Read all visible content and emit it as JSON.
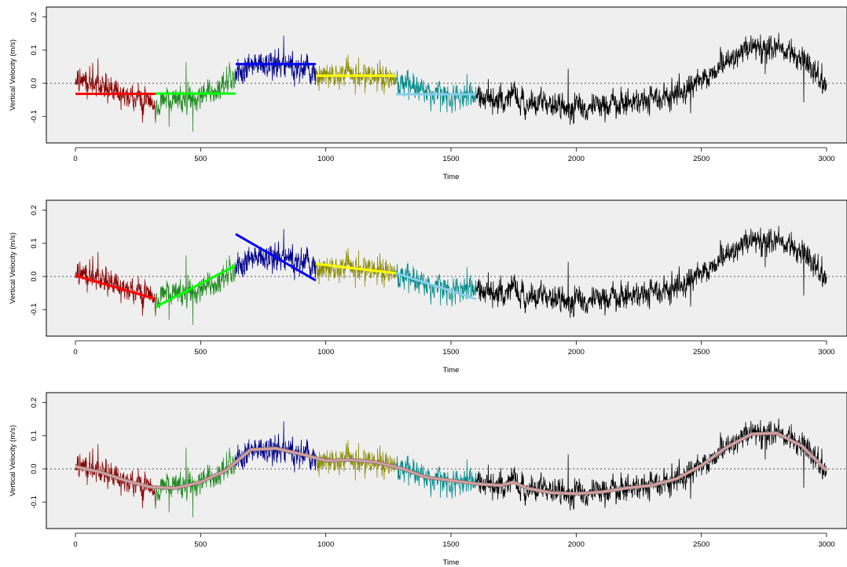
{
  "chart_data": [
    {
      "type": "line",
      "ylabel": "Vertical Velocity (m/s)",
      "xlabel": "Time",
      "xlim": [
        0,
        3000
      ],
      "ylim": [
        -0.18,
        0.23
      ],
      "x_ticks": [
        0,
        500,
        1000,
        1500,
        2000,
        2500,
        3000
      ],
      "y_ticks": [
        0.2,
        0.1,
        0.0,
        -0.1
      ],
      "y_tick_labels": [
        "0.2",
        "0.1",
        "0.0",
        "-0.1"
      ],
      "background": "#efefef",
      "zero_reference_line": "dotted",
      "segment_colors": [
        "#8b0000",
        "#228b22",
        "#00008b",
        "#8b8b00",
        "#008b8b",
        "#000000"
      ],
      "fit_colors": [
        "#ff0000",
        "#00ff00",
        "#0000ff",
        "#ffff00",
        "#87ceeb"
      ],
      "fitted_segments": [
        {
          "x0": 0,
          "x1": 320,
          "y0": -0.032,
          "y1": -0.032
        },
        {
          "x0": 320,
          "x1": 640,
          "y0": -0.031,
          "y1": -0.031
        },
        {
          "x0": 640,
          "x1": 960,
          "y0": 0.058,
          "y1": 0.058
        },
        {
          "x0": 960,
          "x1": 1280,
          "y0": 0.023,
          "y1": 0.023
        },
        {
          "x0": 1280,
          "x1": 1600,
          "y0": -0.033,
          "y1": -0.033
        }
      ]
    },
    {
      "type": "line",
      "ylabel": "Vertical Velocity (m/s)",
      "xlabel": "Time",
      "xlim": [
        0,
        3000
      ],
      "ylim": [
        -0.18,
        0.23
      ],
      "x_ticks": [
        0,
        500,
        1000,
        1500,
        2000,
        2500,
        3000
      ],
      "y_ticks": [
        0.2,
        0.1,
        0.0,
        -0.1
      ],
      "y_tick_labels": [
        "0.2",
        "0.1",
        "0.0",
        "-0.1"
      ],
      "background": "#efefef",
      "zero_reference_line": "dotted",
      "segment_colors": [
        "#8b0000",
        "#228b22",
        "#00008b",
        "#8b8b00",
        "#008b8b",
        "#000000"
      ],
      "fit_colors": [
        "#ff0000",
        "#00ff00",
        "#0000ff",
        "#ffff00",
        "#87ceeb"
      ],
      "fitted_segments": [
        {
          "x0": 0,
          "x1": 320,
          "y0": 0.003,
          "y1": -0.068
        },
        {
          "x0": 320,
          "x1": 640,
          "y0": -0.092,
          "y1": 0.033
        },
        {
          "x0": 640,
          "x1": 960,
          "y0": 0.128,
          "y1": -0.012
        },
        {
          "x0": 960,
          "x1": 1280,
          "y0": 0.038,
          "y1": 0.01
        },
        {
          "x0": 1280,
          "x1": 1600,
          "y0": 0.01,
          "y1": -0.068
        }
      ]
    },
    {
      "type": "line",
      "ylabel": "Vertical Velocity (m/s)",
      "xlabel": "Time",
      "xlim": [
        0,
        3000
      ],
      "ylim": [
        -0.18,
        0.23
      ],
      "x_ticks": [
        0,
        500,
        1000,
        1500,
        2000,
        2500,
        3000
      ],
      "y_ticks": [
        0.2,
        0.1,
        0.0,
        -0.1
      ],
      "y_tick_labels": [
        "0.2",
        "0.1",
        "0.0",
        "-0.1"
      ],
      "background": "#efefef",
      "zero_reference_line": "dotted",
      "segment_colors": [
        "#8b0000",
        "#228b22",
        "#00008b",
        "#8b8b00",
        "#008b8b",
        "#000000"
      ],
      "smooth_color": "#d9a0a0",
      "smooth_fit": {
        "x": [
          0,
          100,
          200,
          300,
          400,
          500,
          600,
          700,
          800,
          900,
          1000,
          1100,
          1200,
          1300,
          1400,
          1500,
          1600,
          1700,
          1750,
          1800,
          1900,
          2000,
          2100,
          2200,
          2300,
          2400,
          2500,
          2600,
          2700,
          2800,
          2900,
          3000
        ],
        "y": [
          0.007,
          -0.01,
          -0.035,
          -0.055,
          -0.058,
          -0.04,
          -0.005,
          0.058,
          0.062,
          0.045,
          0.025,
          0.027,
          0.02,
          0.002,
          -0.025,
          -0.035,
          -0.045,
          -0.05,
          -0.04,
          -0.058,
          -0.072,
          -0.075,
          -0.07,
          -0.058,
          -0.05,
          -0.03,
          0.01,
          0.065,
          0.105,
          0.108,
          0.07,
          -0.005
        ]
      }
    }
  ]
}
